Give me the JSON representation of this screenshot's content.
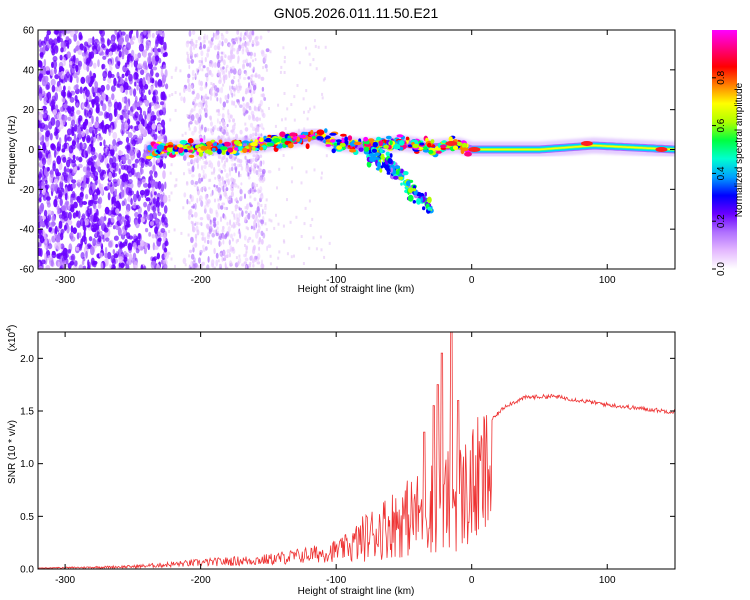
{
  "title": "GN05.2026.011.11.50.E21",
  "chart_data": [
    {
      "type": "heatmap",
      "title": "GN05.2026.011.11.50.E21",
      "xlabel": "Height of straight line (km)",
      "ylabel": "Frequency (Hz)",
      "xlim": [
        -320,
        150
      ],
      "ylim": [
        -60,
        60
      ],
      "xticks": [
        -300,
        -200,
        -100,
        0,
        100
      ],
      "yticks": [
        -60,
        -40,
        -20,
        0,
        20,
        40,
        60
      ],
      "colorbar": {
        "label": "Normalized spectral amplitude",
        "range": [
          0,
          1
        ],
        "ticks": [
          0.0,
          0.2,
          0.4,
          0.6,
          0.8
        ],
        "colormap": [
          "#ffffff",
          "#e4b8ff",
          "#b070ff",
          "#6a00ff",
          "#0000ff",
          "#00a0ff",
          "#00ffd0",
          "#00ff40",
          "#b0ff00",
          "#ffff00",
          "#ff8000",
          "#ff0000",
          "#ff0080",
          "#ff00ff"
        ]
      },
      "ridge": [
        {
          "x": -235,
          "y": 0
        },
        {
          "x": -200,
          "y": 1
        },
        {
          "x": -160,
          "y": 2
        },
        {
          "x": -130,
          "y": 5
        },
        {
          "x": -115,
          "y": 7
        },
        {
          "x": -100,
          "y": 3
        },
        {
          "x": -85,
          "y": 2
        },
        {
          "x": -70,
          "y": 2
        },
        {
          "x": -50,
          "y": 3
        },
        {
          "x": -30,
          "y": 1
        },
        {
          "x": -10,
          "y": 2
        },
        {
          "x": 0,
          "y": 0
        },
        {
          "x": 50,
          "y": 0
        },
        {
          "x": 90,
          "y": 2
        },
        {
          "x": 150,
          "y": 0
        }
      ],
      "tail": [
        {
          "x": -75,
          "y": -2
        },
        {
          "x": -60,
          "y": -8
        },
        {
          "x": -50,
          "y": -15
        },
        {
          "x": -45,
          "y": -20
        },
        {
          "x": -35,
          "y": -25
        },
        {
          "x": -30,
          "y": -30
        }
      ]
    },
    {
      "type": "line",
      "xlabel": "Height of straight line (km)",
      "ylabel": "SNR (10 * v/v)",
      "y_multiplier_label": "(x10^4)",
      "xlim": [
        -320,
        150
      ],
      "ylim": [
        0,
        2.25
      ],
      "xticks": [
        -300,
        -200,
        -100,
        0,
        100
      ],
      "yticks": [
        0.0,
        0.5,
        1.0,
        1.5,
        2.0
      ],
      "color": "#ee3333",
      "envelope": [
        {
          "x": -320,
          "y": 0.01
        },
        {
          "x": -250,
          "y": 0.03
        },
        {
          "x": -200,
          "y": 0.08
        },
        {
          "x": -150,
          "y": 0.12
        },
        {
          "x": -110,
          "y": 0.2
        },
        {
          "x": -95,
          "y": 0.25
        },
        {
          "x": -80,
          "y": 0.45
        },
        {
          "x": -60,
          "y": 0.65
        },
        {
          "x": -40,
          "y": 0.8
        },
        {
          "x": -25,
          "y": 0.95
        },
        {
          "x": -15,
          "y": 1.0
        },
        {
          "x": -5,
          "y": 1.1
        },
        {
          "x": 10,
          "y": 1.35
        },
        {
          "x": 25,
          "y": 1.55
        },
        {
          "x": 40,
          "y": 1.63
        },
        {
          "x": 60,
          "y": 1.64
        },
        {
          "x": 80,
          "y": 1.6
        },
        {
          "x": 100,
          "y": 1.56
        },
        {
          "x": 120,
          "y": 1.53
        },
        {
          "x": 150,
          "y": 1.49
        }
      ],
      "peaks": [
        {
          "x": -25,
          "y": 1.75
        },
        {
          "x": -22,
          "y": 2.05
        },
        {
          "x": -15,
          "y": 2.25
        },
        {
          "x": -35,
          "y": 1.3
        },
        {
          "x": -28,
          "y": 1.55
        },
        {
          "x": -10,
          "y": 1.6
        }
      ]
    }
  ]
}
